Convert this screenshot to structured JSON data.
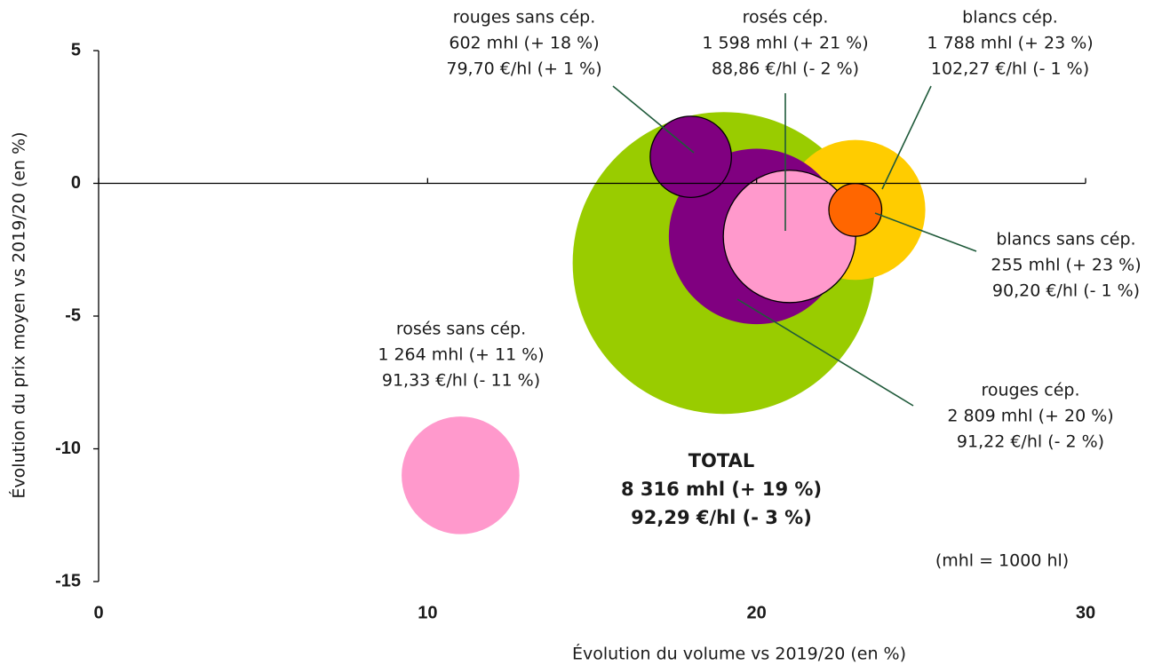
{
  "chart_data": {
    "type": "bubble",
    "xlabel": "Évolution du volume vs 2019/20  (en %)",
    "ylabel": "Évolution du prix moyen vs 2019/20  (en %)",
    "annotation": "(mhl = 1000 hl)",
    "xlim": [
      0,
      30
    ],
    "xticks": [
      0,
      10,
      20,
      30
    ],
    "ylim": [
      -15,
      5
    ],
    "yticks": [
      5,
      0,
      -5,
      -10,
      -15
    ],
    "series": [
      {
        "name": "TOTAL",
        "color": "#99cc00",
        "x": [
          19
        ],
        "values": [
          -3
        ],
        "sizes": [
          8316
        ],
        "value_labels": [
          "8 316 mhl (+ 19 %)",
          "92,29 €/hl (- 3 %)"
        ]
      },
      {
        "name": "blancs cép.",
        "color": "#ffcc00",
        "x": [
          23
        ],
        "values": [
          -1
        ],
        "sizes": [
          1788
        ],
        "value_labels": [
          "1 788 mhl (+ 23 %)",
          "102,27 €/hl (- 1 %)"
        ]
      },
      {
        "name": "rouges cép.",
        "color": "#800080",
        "x": [
          20
        ],
        "values": [
          -2
        ],
        "sizes": [
          2809
        ],
        "value_labels": [
          "2 809 mhl (+ 20 %)",
          "91,22 €/hl (- 2 %)"
        ]
      },
      {
        "name": "rosés cép.",
        "color": "#ff99cc",
        "edgecolor": "#000000",
        "x": [
          21
        ],
        "values": [
          -2
        ],
        "sizes": [
          1598
        ],
        "value_labels": [
          "1 598 mhl (+ 21 %)",
          "88,86 €/hl (- 2 %)"
        ]
      },
      {
        "name": "blancs sans cép.",
        "color": "#ff6600",
        "edgecolor": "#000000",
        "x": [
          23
        ],
        "values": [
          -1
        ],
        "sizes": [
          255
        ],
        "value_labels": [
          "255 mhl (+ 23 %)",
          "90,20 €/hl (- 1 %)"
        ]
      },
      {
        "name": "rouges sans cép.",
        "color": "#800080",
        "edgecolor": "#000000",
        "x": [
          18
        ],
        "values": [
          1
        ],
        "sizes": [
          602
        ],
        "value_labels": [
          "602  mhl (+ 18 %)",
          "79,70 €/hl (+ 1 %)"
        ]
      },
      {
        "name": "rosés sans cép.",
        "color": "#ff99cc",
        "x": [
          11
        ],
        "values": [
          -11
        ],
        "sizes": [
          1264
        ],
        "value_labels": [
          "1 264 mhl (+ 11 %)",
          "91,33 €/hl (- 11 %)"
        ]
      }
    ]
  }
}
